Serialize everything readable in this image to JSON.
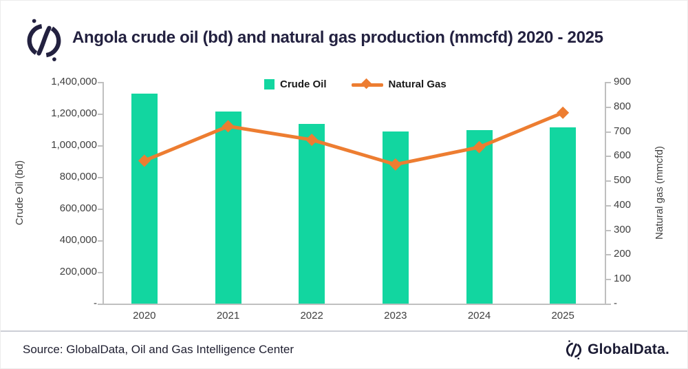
{
  "header": {
    "title": "Angola crude oil (bd) and natural gas production (mmcfd) 2020 - 2025"
  },
  "chart_data": {
    "type": "bar+line",
    "categories": [
      "2020",
      "2021",
      "2022",
      "2023",
      "2024",
      "2025"
    ],
    "series": [
      {
        "name": "Crude Oil",
        "type": "bar",
        "axis": "left",
        "values": [
          1325000,
          1215000,
          1135000,
          1085000,
          1095000,
          1115000
        ]
      },
      {
        "name": "Natural Gas",
        "type": "line",
        "axis": "right",
        "values": [
          580,
          720,
          665,
          565,
          635,
          775
        ]
      }
    ],
    "left_axis": {
      "label": "Crude Oil (bd)",
      "min": 0,
      "max": 1400000,
      "ticks": [
        "1,400,000",
        "1,200,000",
        "1,000,000",
        "800,000",
        "600,000",
        "400,000",
        "200,000",
        "-"
      ]
    },
    "right_axis": {
      "label": "Natural gas (mmcfd)",
      "min": 0,
      "max": 900,
      "ticks": [
        "900",
        "800",
        "700",
        "600",
        "500",
        "400",
        "300",
        "200",
        "100",
        "-"
      ]
    },
    "legend": [
      "Crude Oil",
      "Natural Gas"
    ],
    "grid": false,
    "legend_position": "top-center"
  },
  "colors": {
    "bar_green": "#12d6a0",
    "line_orange": "#ed7d31",
    "navy": "#232140",
    "axis_gray": "#bfbfbf",
    "tick_text": "#3f3f3f"
  },
  "footer": {
    "source": "Source: GlobalData, Oil and Gas Intelligence Center",
    "brand": "GlobalData."
  }
}
